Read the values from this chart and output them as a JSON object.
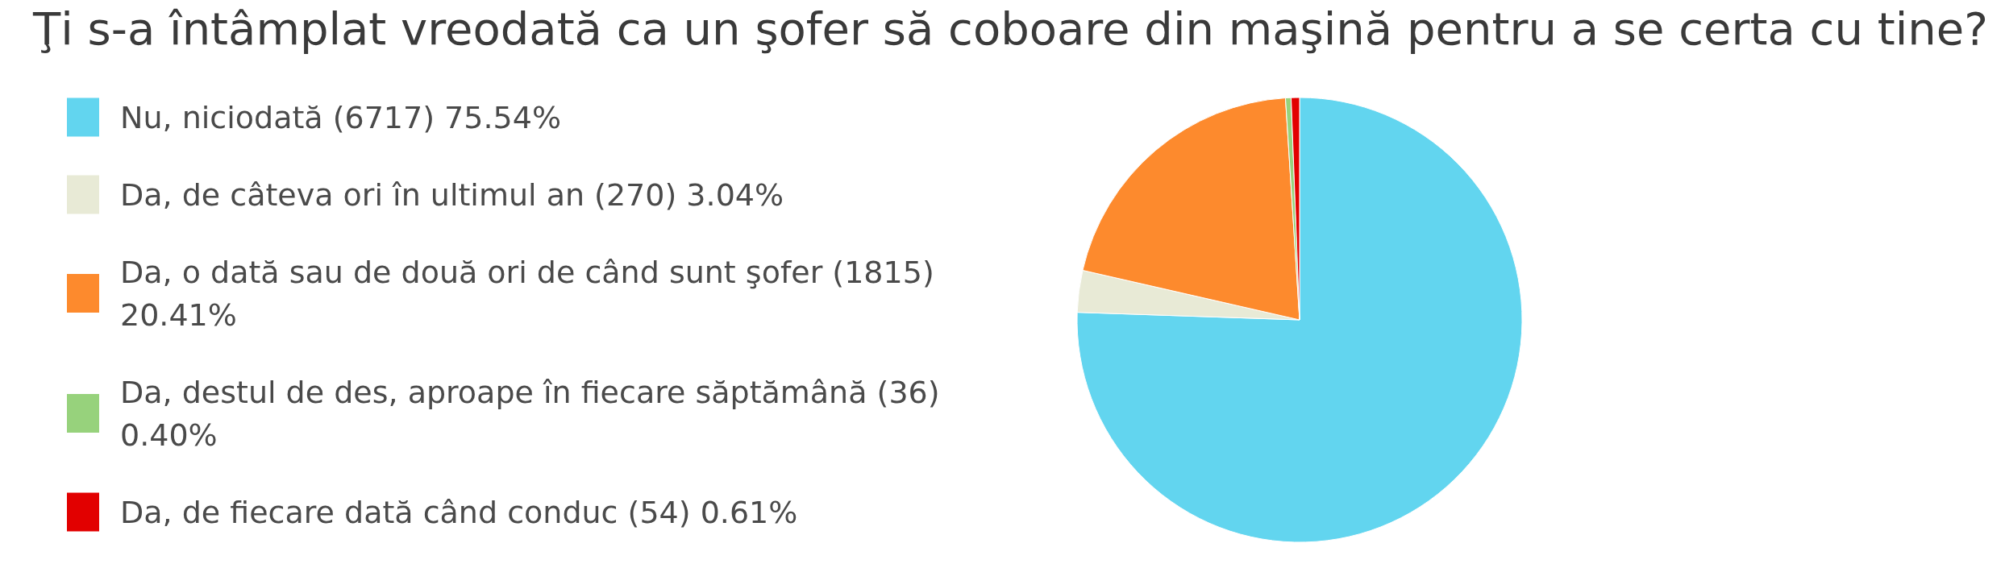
{
  "chart_data": {
    "type": "pie",
    "title": "Ţi s-a întâmplat vreodată ca un şofer să coboare din maşină pentru a se certa cu tine?",
    "categories": [
      "Nu, niciodată (6717) 75.54%",
      "Da, de câteva ori în ultimul an (270) 3.04%",
      "Da, o dată sau de două ori de când sunt şofer (1815) 20.41%",
      "Da, destul de des, aproape în fiecare săptămână (36) 0.40%",
      "Da, de fiecare dată când conduc (54) 0.61%"
    ],
    "values": [
      6717,
      270,
      1815,
      36,
      54
    ],
    "colors": [
      "#62d5ef",
      "#e8ead6",
      "#fd8a2d",
      "#97d27c",
      "#e20000"
    ],
    "legend": "left"
  }
}
